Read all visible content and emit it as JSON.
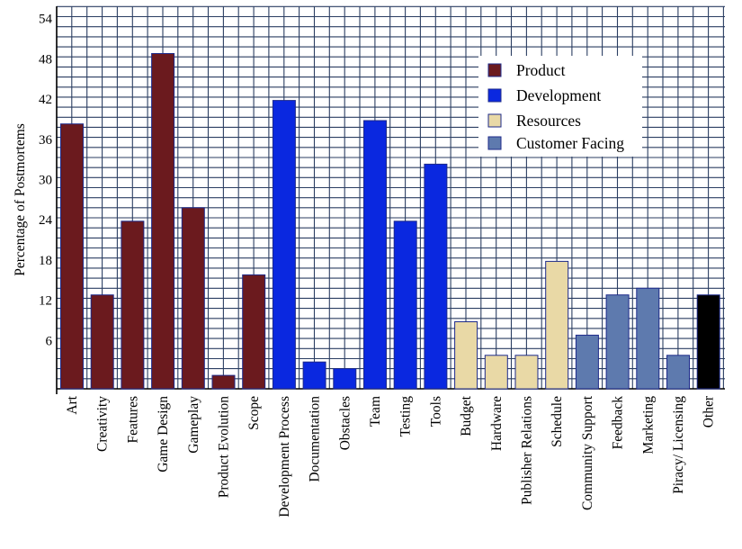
{
  "chart_data": {
    "type": "bar",
    "ylabel": "Percentage of Postmortems",
    "xlabel": "",
    "ylim": [
      0,
      57
    ],
    "yticks": [
      6,
      12,
      18,
      24,
      30,
      36,
      42,
      48,
      54
    ],
    "grid": true,
    "legend_position": "top-right",
    "categories": [
      "Art",
      "Creativity",
      "Features",
      "Game Design",
      "Gameplay",
      "Product Evolution",
      "Scope",
      "Development Process",
      "Documentation",
      "Obstacles",
      "Team",
      "Testing",
      "Tools",
      "Budget",
      "Hardware",
      "Publisher Relations",
      "Schedule",
      "Community Support",
      "Feedback",
      "Marketing",
      "Piracy/ Licensing",
      "Other"
    ],
    "values": [
      39.5,
      14,
      25,
      50,
      27,
      2,
      17,
      43,
      4,
      3,
      40,
      25,
      33.5,
      10,
      5,
      5,
      19,
      8,
      14,
      15,
      5,
      14
    ],
    "groups": [
      "Product",
      "Product",
      "Product",
      "Product",
      "Product",
      "Product",
      "Product",
      "Development",
      "Development",
      "Development",
      "Development",
      "Development",
      "Development",
      "Resources",
      "Resources",
      "Resources",
      "Resources",
      "Customer Facing",
      "Customer Facing",
      "Customer Facing",
      "Customer Facing",
      "Other"
    ],
    "legend": [
      {
        "name": "Product",
        "color": "#6b1a1e"
      },
      {
        "name": "Development",
        "color": "#0a28e0"
      },
      {
        "name": "Resources",
        "color": "#e9d9a6"
      },
      {
        "name": "Customer Facing",
        "color": "#5e7aae"
      }
    ],
    "colors": {
      "Product": "#6b1a1e",
      "Development": "#0a28e0",
      "Resources": "#e9d9a6",
      "Customer Facing": "#5e7aae",
      "Other": "#000000"
    },
    "grid_color": "#2b3e62"
  }
}
